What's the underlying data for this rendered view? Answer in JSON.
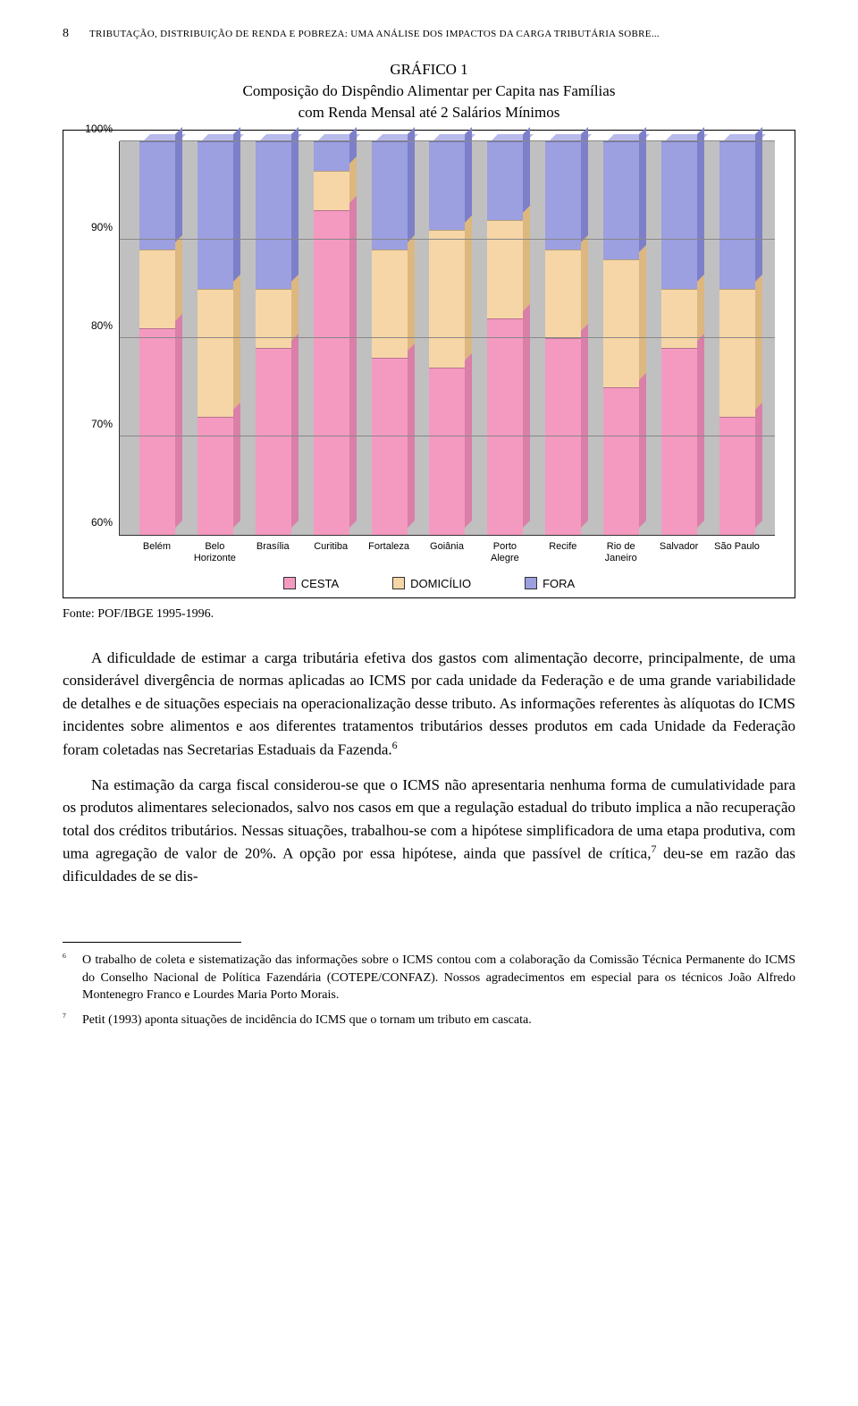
{
  "page_number": "8",
  "running_title": "TRIBUTAÇÃO, DISTRIBUIÇÃO DE RENDA E POBREZA: UMA ANÁLISE DOS IMPACTOS DA CARGA TRIBUTÁRIA SOBRE...",
  "chart": {
    "title": "GRÁFICO 1\nComposição do Dispêndio Alimentar per Capita nas Famílias\ncom Renda Mensal até 2 Salários Mínimos",
    "type": "stacked-bar",
    "ylim": [
      60,
      100
    ],
    "ytick_step": 10,
    "yticks": [
      "60%",
      "70%",
      "80%",
      "90%",
      "100%"
    ],
    "categories": [
      "Belém",
      "Belo\nHorizonte",
      "Brasília",
      "Curitiba",
      "Fortaleza",
      "Goiânia",
      "Porto\nAlegre",
      "Recife",
      "Rio de\nJaneiro",
      "Salvador",
      "São Paulo"
    ],
    "series": [
      {
        "key": "cesta",
        "label": "CESTA",
        "color": "#f49ac1",
        "color_top": "#f7b9d4",
        "color_side": "#d97fa8"
      },
      {
        "key": "domicilio",
        "label": "DOMICÍLIO",
        "color": "#f6d6a6",
        "color_top": "#fbe6c4",
        "color_side": "#dcb77f"
      },
      {
        "key": "fora",
        "label": "FORA",
        "color": "#9c9fe0",
        "color_top": "#b8baec",
        "color_side": "#7d80c8"
      }
    ],
    "data": [
      {
        "cesta": 81,
        "domicilio": 8,
        "fora": 11
      },
      {
        "cesta": 72,
        "domicilio": 13,
        "fora": 15
      },
      {
        "cesta": 79,
        "domicilio": 6,
        "fora": 15
      },
      {
        "cesta": 93,
        "domicilio": 4,
        "fora": 3
      },
      {
        "cesta": 78,
        "domicilio": 11,
        "fora": 11
      },
      {
        "cesta": 77,
        "domicilio": 14,
        "fora": 9
      },
      {
        "cesta": 82,
        "domicilio": 10,
        "fora": 8
      },
      {
        "cesta": 80,
        "domicilio": 9,
        "fora": 11
      },
      {
        "cesta": 75,
        "domicilio": 13,
        "fora": 12
      },
      {
        "cesta": 79,
        "domicilio": 6,
        "fora": 15
      },
      {
        "cesta": 72,
        "domicilio": 13,
        "fora": 15
      }
    ],
    "background_color": "#c0c0c0",
    "grid_color": "#888888",
    "legend_position": "bottom"
  },
  "source_line": "Fonte: POF/IBGE 1995-1996.",
  "paragraphs": [
    "A dificuldade de estimar a carga tributária efetiva dos gastos com alimentação decorre, principalmente, de uma considerável divergência de normas aplicadas ao ICMS por cada unidade da Federação e de uma grande variabilidade de detalhes e de situações especiais na operacionalização desse tributo. As informações referentes às alíquotas do ICMS incidentes sobre alimentos e aos diferentes tratamentos tributários desses produtos em cada Unidade da Federação foram coletadas nas Secretarias Estaduais da Fazenda.⁶",
    "Na estimação da carga fiscal considerou-se que o ICMS não apresentaria nenhuma forma de cumulatividade para os produtos alimentares selecionados, salvo nos casos em que a regulação estadual do tributo implica a não recuperação total dos créditos tributários. Nessas situações, trabalhou-se com a hipótese simplificadora de uma etapa produtiva, com uma agregação de valor de 20%. A opção por essa hipótese, ainda que passível de crítica,⁷ deu-se em razão das dificuldades de se dis-"
  ],
  "footnotes": [
    {
      "num": "6",
      "text": "O trabalho de coleta e sistematização das informações sobre o ICMS contou com a colaboração da Comissão Técnica Permanente do ICMS do Conselho Nacional de Política Fazendária (COTEPE/CONFAZ). Nossos agradecimentos em especial para os técnicos João Alfredo Montenegro Franco e Lourdes Maria Porto Morais."
    },
    {
      "num": "7",
      "text": "Petit (1993) aponta situações de incidência do ICMS que o tornam um tributo em cascata."
    }
  ]
}
